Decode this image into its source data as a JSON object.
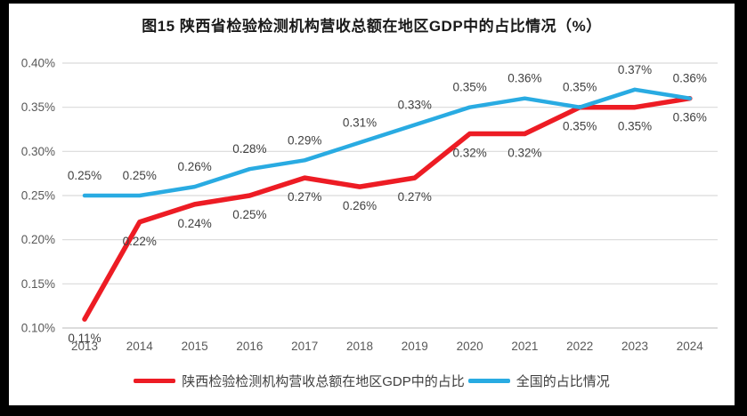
{
  "title": "图15 陕西省检验检测机构营收总额在地区GDP中的占比情况（%）",
  "chart_data": {
    "type": "line",
    "x": [
      "2013",
      "2014",
      "2015",
      "2016",
      "2017",
      "2018",
      "2019",
      "2020",
      "2021",
      "2022",
      "2023",
      "2024"
    ],
    "series": [
      {
        "name": "陕西检验检测机构营收总额在地区GDP中的占比",
        "color": "#ED1C24",
        "label_position": "below",
        "values": [
          0.11,
          0.22,
          0.24,
          0.25,
          0.27,
          0.26,
          0.27,
          0.32,
          0.32,
          0.35,
          0.35,
          0.36
        ],
        "labels": [
          "0.11%",
          "0.22%",
          "0.24%",
          "0.25%",
          "0.27%",
          "0.26%",
          "0.27%",
          "0.32%",
          "0.32%",
          "0.35%",
          "0.35%",
          "0.36%"
        ]
      },
      {
        "name": "全国的占比情况",
        "color": "#29ABE2",
        "label_position": "above",
        "values": [
          0.25,
          0.25,
          0.26,
          0.28,
          0.29,
          0.31,
          0.33,
          0.35,
          0.36,
          0.35,
          0.37,
          0.36
        ],
        "labels": [
          "0.25%",
          "0.25%",
          "0.26%",
          "0.28%",
          "0.29%",
          "0.31%",
          "0.33%",
          "0.35%",
          "0.36%",
          "0.35%",
          "0.37%",
          "0.36%"
        ]
      }
    ],
    "ylim": [
      0.1,
      0.4
    ],
    "ytick_step": 0.05,
    "ytick_labels": [
      "0.10%",
      "0.15%",
      "0.20%",
      "0.25%",
      "0.30%",
      "0.35%",
      "0.40%"
    ],
    "xlabel": "",
    "ylabel": "",
    "grid": true,
    "legend_position": "bottom"
  },
  "colors": {
    "grid": "#d9d9d9",
    "axis": "#c6c6c6",
    "tick_text": "#595959",
    "label_text": "#404040"
  }
}
